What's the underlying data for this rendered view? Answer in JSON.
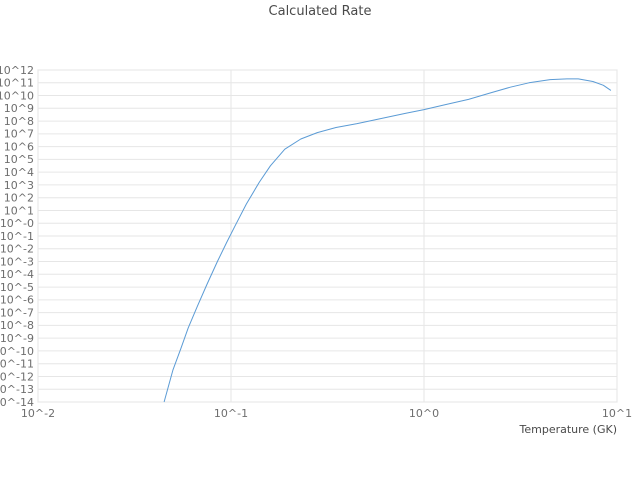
{
  "chart_data": {
    "type": "line",
    "title": "Calculated Rate",
    "xlabel": "Temperature (GK)",
    "ylabel": "",
    "x_scale": "log",
    "y_scale": "log",
    "xlim": [
      0.01,
      10
    ],
    "ylim_log10": [
      -14,
      12
    ],
    "grid": true,
    "legend": "none",
    "line_color": "#5b9bd5",
    "grid_color": "#e6e6e6",
    "border_color": "#e0e0e0",
    "x_ticks": [
      {
        "exp": -2,
        "label": "10^-2"
      },
      {
        "exp": -1,
        "label": "10^-1"
      },
      {
        "exp": 0,
        "label": "10^0"
      },
      {
        "exp": 1,
        "label": "10^1"
      }
    ],
    "y_ticks": [
      {
        "exp": 12,
        "label": "10^12"
      },
      {
        "exp": 11,
        "label": "10^11"
      },
      {
        "exp": 10,
        "label": "10^10"
      },
      {
        "exp": 9,
        "label": "10^9"
      },
      {
        "exp": 8,
        "label": "10^8"
      },
      {
        "exp": 7,
        "label": "10^7"
      },
      {
        "exp": 6,
        "label": "10^6"
      },
      {
        "exp": 5,
        "label": "10^5"
      },
      {
        "exp": 4,
        "label": "10^4"
      },
      {
        "exp": 3,
        "label": "10^3"
      },
      {
        "exp": 2,
        "label": "10^2"
      },
      {
        "exp": 1,
        "label": "10^1"
      },
      {
        "exp": 0,
        "label": "10^-0"
      },
      {
        "exp": -1,
        "label": "10^-1"
      },
      {
        "exp": -2,
        "label": "10^-2"
      },
      {
        "exp": -3,
        "label": "10^-3"
      },
      {
        "exp": -4,
        "label": "10^-4"
      },
      {
        "exp": -5,
        "label": "10^-5"
      },
      {
        "exp": -6,
        "label": "10^-6"
      },
      {
        "exp": -7,
        "label": "10^-7"
      },
      {
        "exp": -8,
        "label": "10^-8"
      },
      {
        "exp": -9,
        "label": "10^-9"
      },
      {
        "exp": -10,
        "label": "10^-10"
      },
      {
        "exp": -11,
        "label": "10^-11"
      },
      {
        "exp": -12,
        "label": "10^-12"
      },
      {
        "exp": -13,
        "label": "10^-13"
      },
      {
        "exp": -14,
        "label": "10^-14"
      }
    ],
    "series": [
      {
        "name": "Calculated Rate",
        "x": [
          0.045,
          0.05,
          0.055,
          0.06,
          0.067,
          0.075,
          0.085,
          0.095,
          0.105,
          0.12,
          0.14,
          0.16,
          0.19,
          0.23,
          0.28,
          0.35,
          0.45,
          0.6,
          0.8,
          1.0,
          1.3,
          1.7,
          2.2,
          2.8,
          3.5,
          4.5,
          5.5,
          6.3,
          7.5,
          8.5,
          9.3
        ],
        "y_log10": [
          -14,
          -11.5,
          -9.8,
          -8.2,
          -6.5,
          -4.8,
          -3.0,
          -1.5,
          -0.2,
          1.5,
          3.2,
          4.5,
          5.8,
          6.6,
          7.1,
          7.5,
          7.8,
          8.2,
          8.6,
          8.9,
          9.3,
          9.7,
          10.2,
          10.65,
          11.0,
          11.25,
          11.3,
          11.3,
          11.1,
          10.8,
          10.4
        ]
      }
    ]
  }
}
